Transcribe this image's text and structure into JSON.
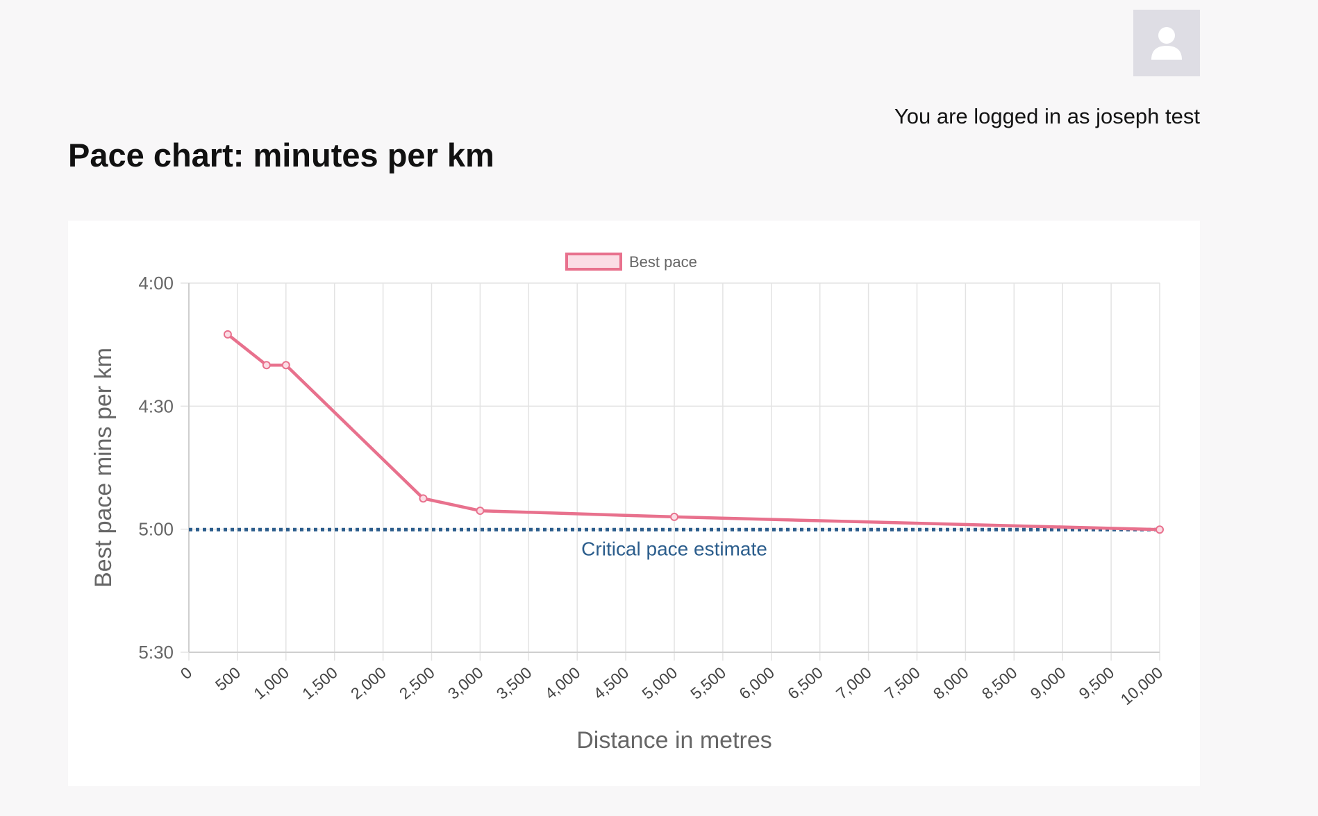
{
  "header": {
    "login_text": "You are logged in as joseph test"
  },
  "page": {
    "title": "Pace chart: minutes per km"
  },
  "chart_data": {
    "type": "line",
    "xlabel": "Distance in metres",
    "ylabel": "Best pace mins per km",
    "xlim": [
      0,
      10000
    ],
    "ylim_seconds": [
      240,
      330
    ],
    "y_inverted": true,
    "x_ticks": [
      0,
      500,
      1000,
      1500,
      2000,
      2500,
      3000,
      3500,
      4000,
      4500,
      5000,
      5500,
      6000,
      6500,
      7000,
      7500,
      8000,
      8500,
      9000,
      9500,
      10000
    ],
    "x_tick_labels": [
      "0",
      "500",
      "1,000",
      "1,500",
      "2,000",
      "2,500",
      "3,000",
      "3,500",
      "4,000",
      "4,500",
      "5,000",
      "5,500",
      "6,000",
      "6,500",
      "7,000",
      "7,500",
      "8,000",
      "8,500",
      "9,000",
      "9,500",
      "10,000"
    ],
    "y_ticks_seconds": [
      240,
      270,
      300,
      330
    ],
    "y_tick_labels": [
      "4:00",
      "4:30",
      "5:00",
      "5:30"
    ],
    "grid": true,
    "legend": {
      "position": "top-center",
      "label": "Best pace"
    },
    "series": [
      {
        "name": "Best pace",
        "color": "#e8718d",
        "fill": "#fbdde5",
        "x": [
          400,
          800,
          1000,
          2414,
          3000,
          5000,
          10000
        ],
        "y_seconds": [
          252.5,
          260,
          260,
          292.5,
          295.5,
          297,
          300.1
        ]
      }
    ],
    "annotations": [
      {
        "type": "hline",
        "y_seconds": 300.1,
        "style": "dotted",
        "color": "#2b5d8c",
        "label": "Critical pace estimate"
      }
    ]
  }
}
